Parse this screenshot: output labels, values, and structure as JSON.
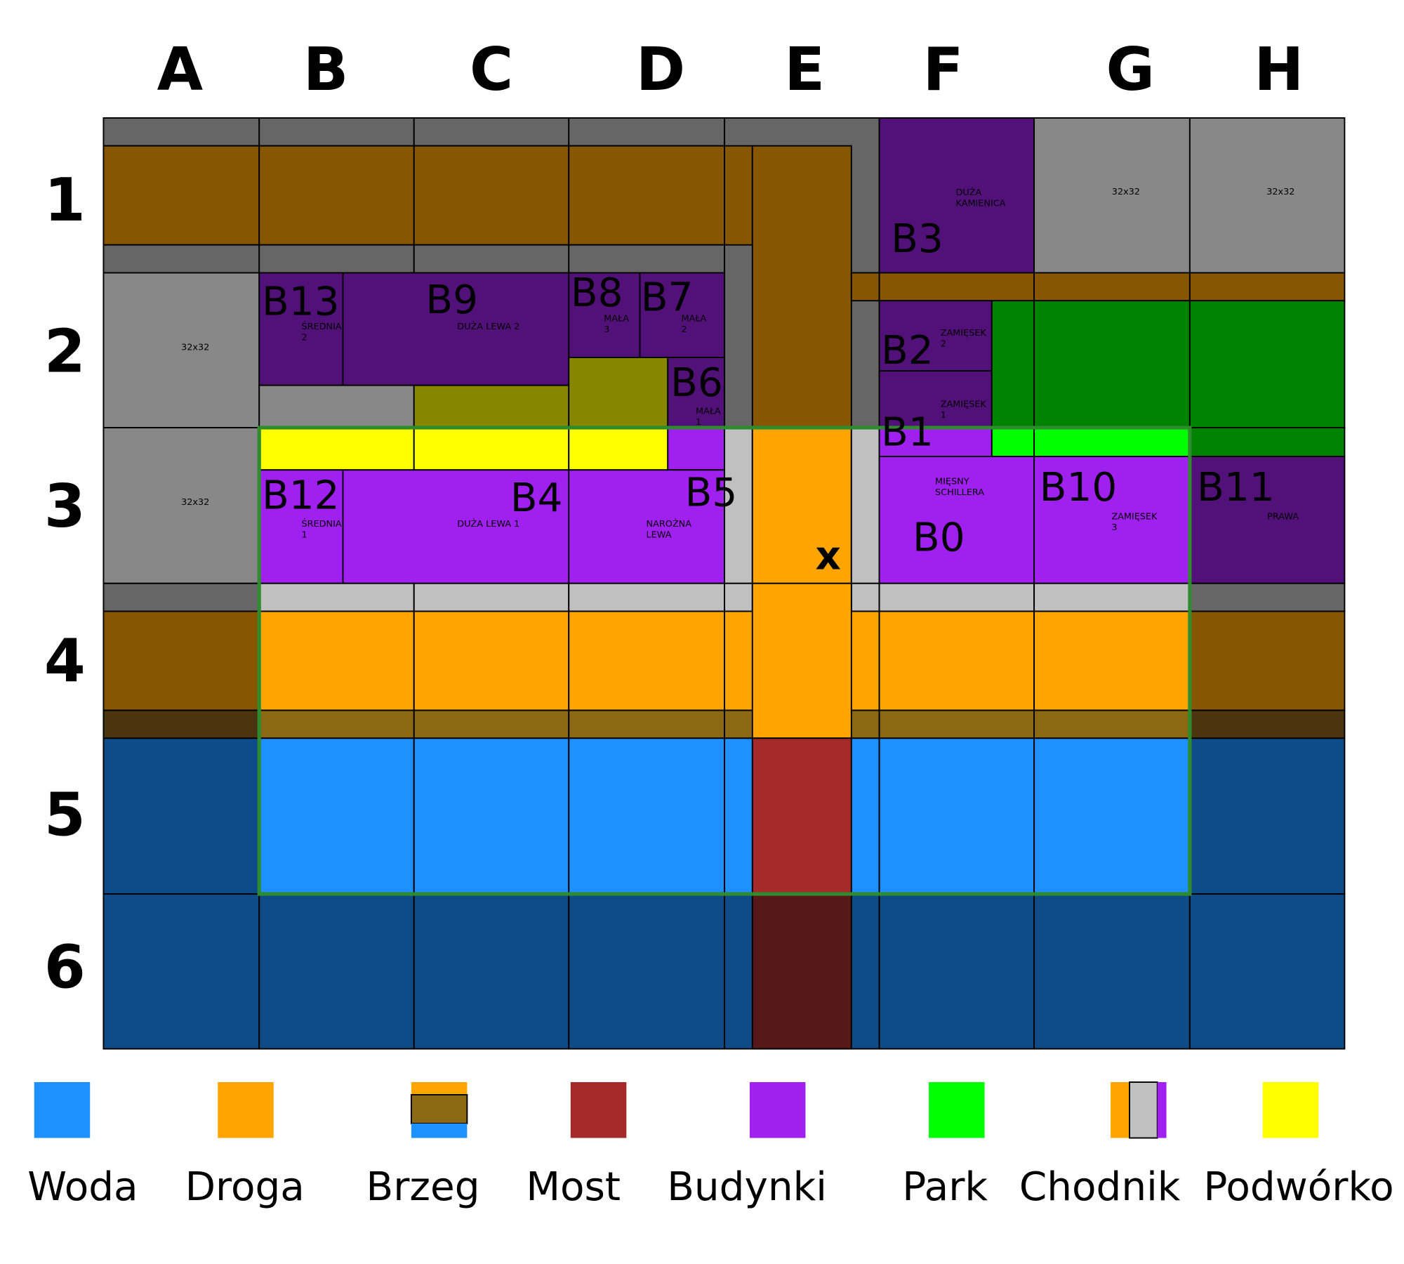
{
  "columns": [
    "A",
    "B",
    "C",
    "D",
    "E",
    "F",
    "G",
    "H"
  ],
  "rows": [
    "1",
    "2",
    "3",
    "4",
    "5",
    "6"
  ],
  "tile_label": "32x32",
  "marker": "x",
  "buildings": [
    {
      "id": "B13",
      "lines": [
        "ŚREDNIA",
        "2"
      ]
    },
    {
      "id": "B9",
      "lines": [
        "DUŻA LEWA 2"
      ]
    },
    {
      "id": "B8",
      "lines": [
        "MAŁA",
        "3"
      ]
    },
    {
      "id": "B7",
      "lines": [
        "MAŁA",
        "2"
      ]
    },
    {
      "id": "B6",
      "lines": [
        "MAŁA",
        "1"
      ]
    },
    {
      "id": "B3",
      "lines": [
        "DUŻA",
        "KAMIENICA"
      ]
    },
    {
      "id": "B2",
      "lines": [
        "ZAMIĘSEK",
        "2"
      ]
    },
    {
      "id": "B1",
      "lines": [
        "ZAMIĘSEK",
        "1"
      ]
    },
    {
      "id": "B12",
      "lines": [
        "ŚREDNIA",
        "1"
      ]
    },
    {
      "id": "B4",
      "lines": [
        "DUŻA LEWA 1"
      ]
    },
    {
      "id": "B5",
      "lines": [
        "NAROŻNA",
        "LEWA"
      ]
    },
    {
      "id": "B0",
      "lines": [
        "MIĘSNY",
        "SCHILLERA"
      ]
    },
    {
      "id": "B10",
      "lines": [
        "ZAMIĘSEK",
        "3"
      ]
    },
    {
      "id": "B11",
      "lines": [
        "PRAWA"
      ]
    }
  ],
  "legend": [
    {
      "label": "Woda"
    },
    {
      "label": "Droga"
    },
    {
      "label": "Brzeg"
    },
    {
      "label": "Most"
    },
    {
      "label": "Budynki"
    },
    {
      "label": "Park"
    },
    {
      "label": "Chodnik"
    },
    {
      "label": "Podwórko"
    }
  ],
  "colors": {
    "road_gray": "#666666",
    "road_brown": "#875700",
    "tile_gray": "#888888",
    "building_dark": "#521178",
    "building": "#a020f0",
    "olive": "#868600",
    "yard": "#ffff00",
    "park_dark": "#008400",
    "park": "#00ff00",
    "sidewalk": "#c0c0c0",
    "road": "#ffa500",
    "shore_dark": "#4a3510",
    "shore": "#8b6914",
    "water": "#1e90ff",
    "water_dark": "#0f4c87",
    "bridge": "#a52a2a",
    "bridge_dark": "#561818",
    "frame": "#2e8b2e"
  }
}
